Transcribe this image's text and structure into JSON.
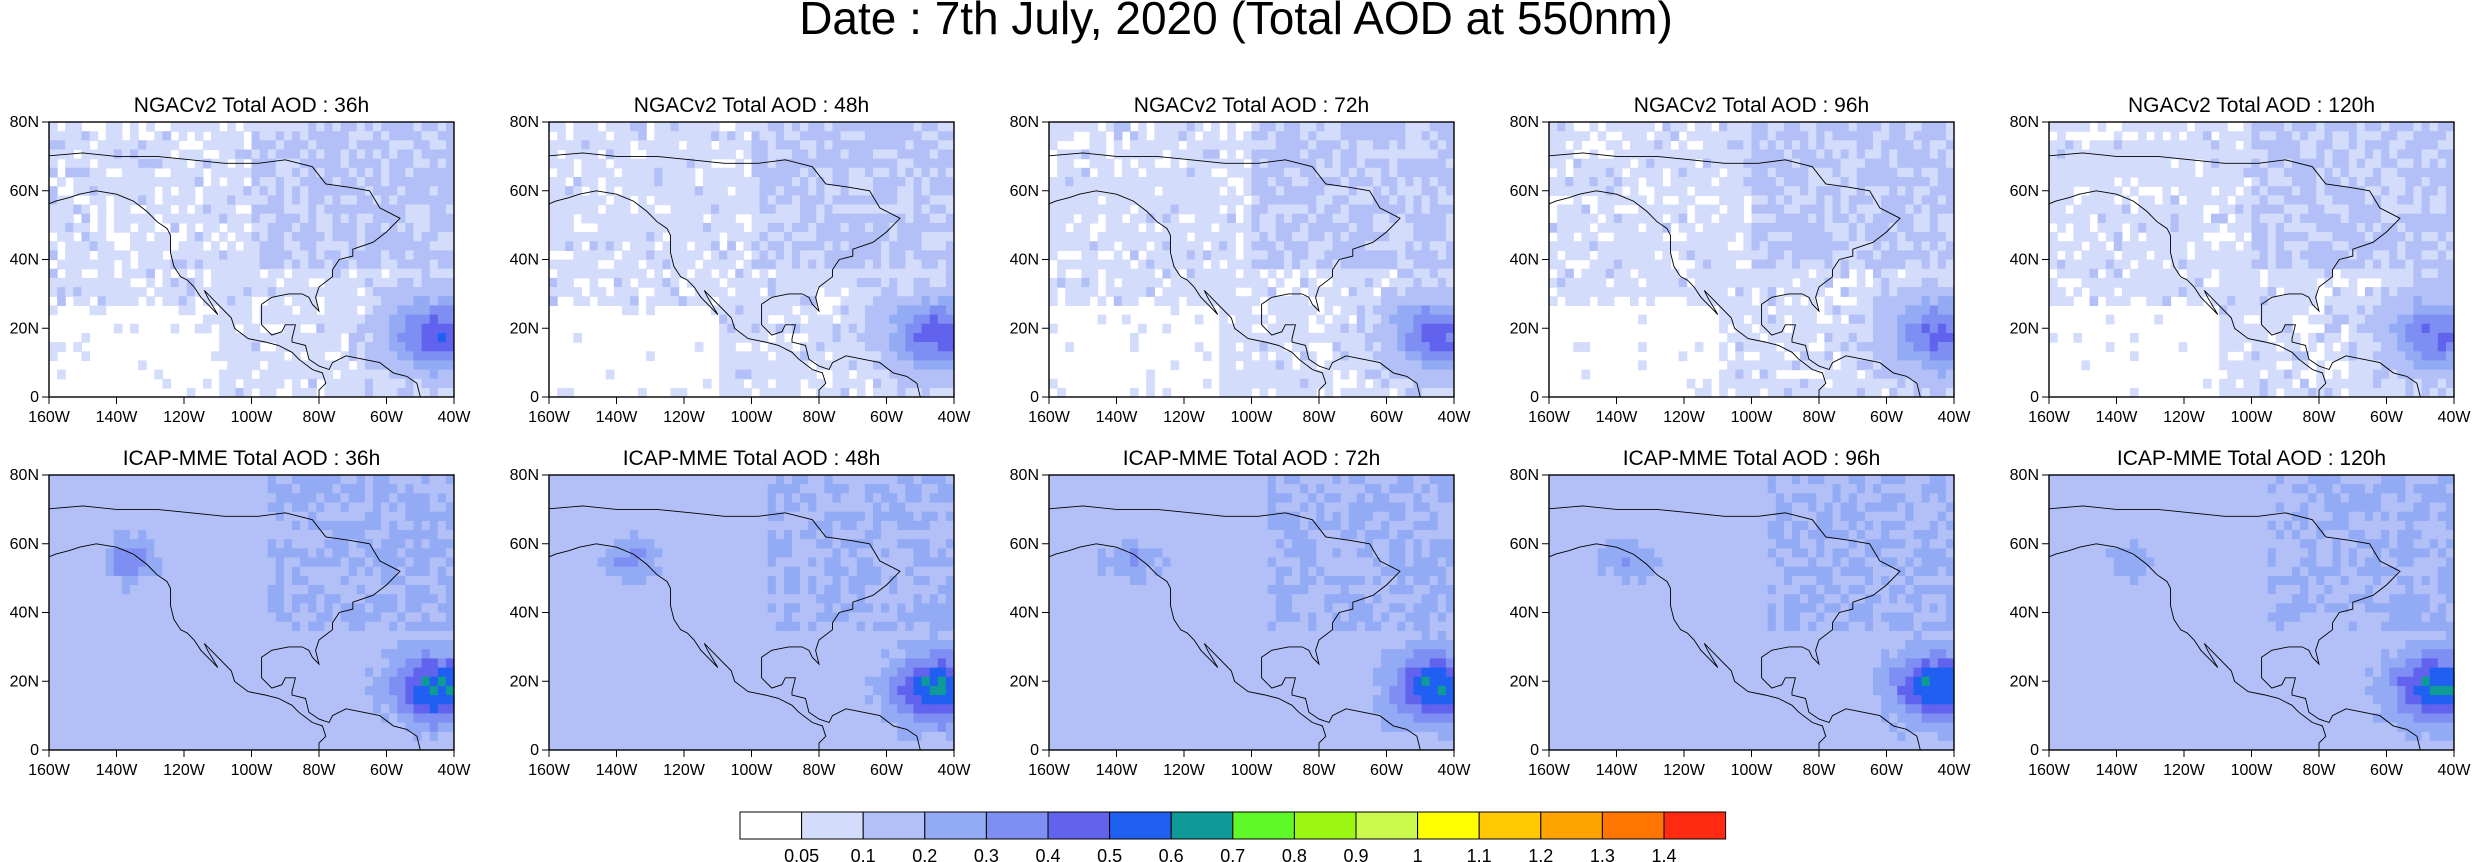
{
  "figure": {
    "title": "Date : 7th July, 2020 (Total AOD at 550nm)"
  },
  "axes": {
    "lat_ticks": [
      "80N",
      "60N",
      "40N",
      "20N",
      "0"
    ],
    "lon_ticks": [
      "160W",
      "140W",
      "120W",
      "100W",
      "80W",
      "60W",
      "40W"
    ],
    "lat_range": [
      0,
      80
    ],
    "lon_range": [
      -160,
      -40
    ]
  },
  "rows": [
    {
      "model": "NGACv2",
      "panels": [
        {
          "title": "NGACv2 Total AOD : 36h"
        },
        {
          "title": "NGACv2 Total AOD : 48h"
        },
        {
          "title": "NGACv2 Total AOD : 72h"
        },
        {
          "title": "NGACv2 Total AOD : 96h"
        },
        {
          "title": "NGACv2 Total AOD : 120h"
        }
      ]
    },
    {
      "model": "ICAP-MME",
      "panels": [
        {
          "title": "ICAP-MME Total AOD : 36h"
        },
        {
          "title": "ICAP-MME Total AOD : 48h"
        },
        {
          "title": "ICAP-MME Total AOD : 72h"
        },
        {
          "title": "ICAP-MME Total AOD : 96h"
        },
        {
          "title": "ICAP-MME Total AOD : 120h"
        }
      ]
    }
  ],
  "colorbar": {
    "colors": [
      "#ffffff",
      "#d4dcfb",
      "#b2c0f7",
      "#93aaf4",
      "#7f8ef2",
      "#6163ee",
      "#1f5ff1",
      "#0e9a97",
      "#5ff92a",
      "#9bf712",
      "#c8f94c",
      "#ffff00",
      "#ffc800",
      "#ffa300",
      "#ff7500",
      "#ff2a10"
    ],
    "labels": [
      "0.05",
      "0.1",
      "0.2",
      "0.3",
      "0.4",
      "0.5",
      "0.6",
      "0.7",
      "0.8",
      "0.9",
      "1",
      "1.1",
      "1.2",
      "1.3",
      "1.4"
    ]
  },
  "colors": {
    "land_outline": "#000000",
    "background": "#ffffff"
  }
}
